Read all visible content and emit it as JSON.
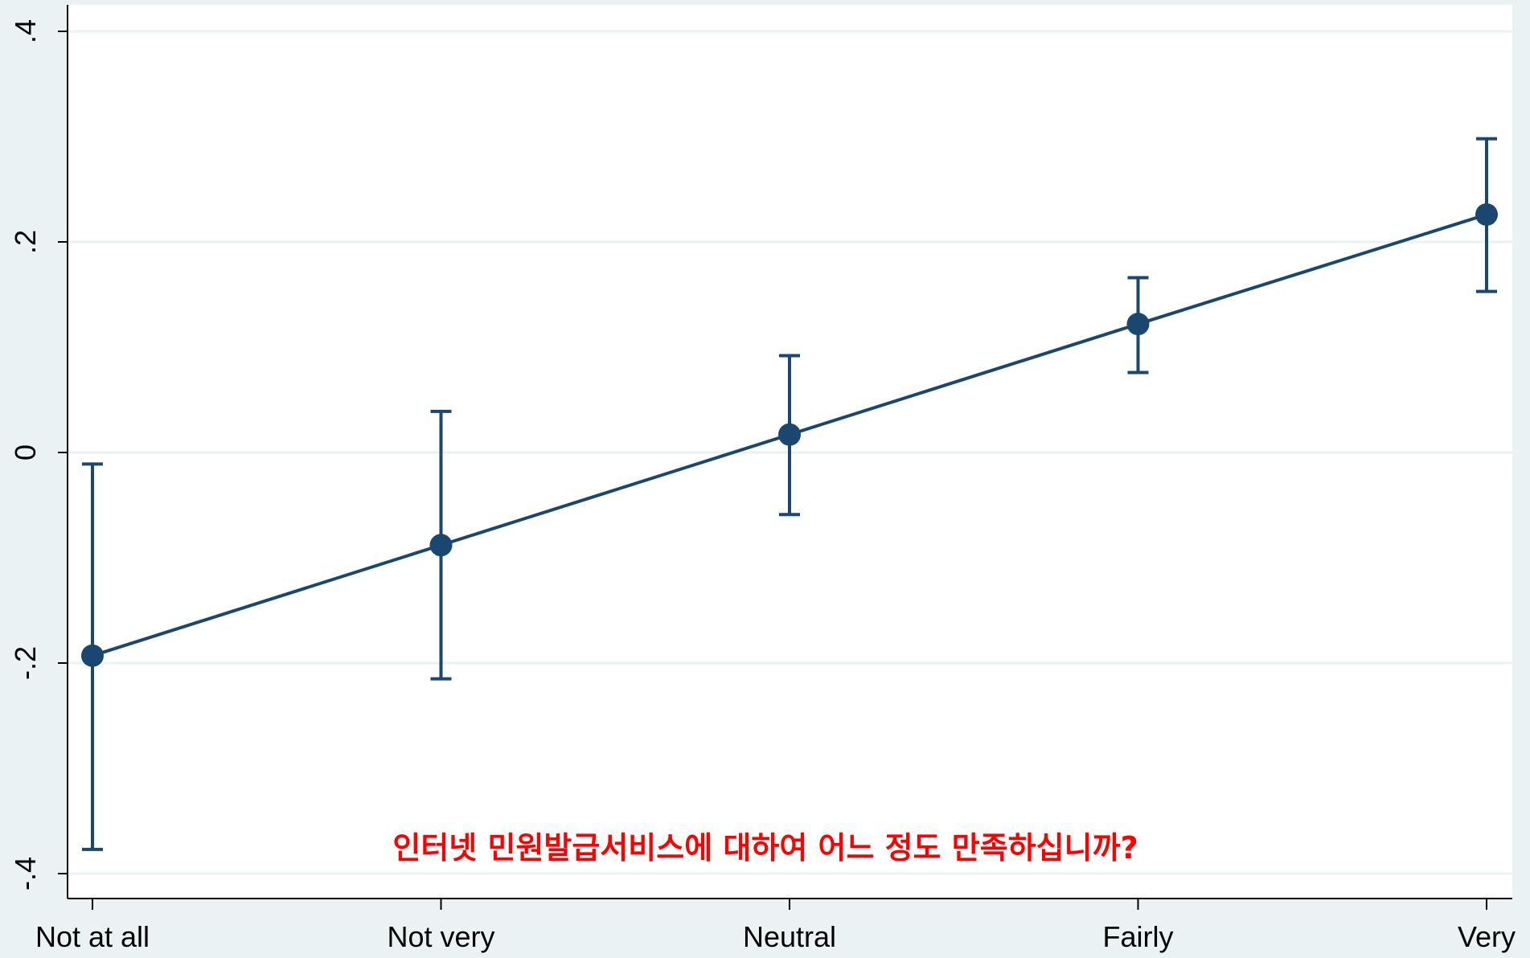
{
  "chart_data": {
    "type": "line",
    "categories": [
      "Not at all",
      "Not very",
      "Neutral",
      "Fairly",
      "Very"
    ],
    "series": [
      {
        "values": [
          -0.193,
          -0.088,
          0.017,
          0.122,
          0.226
        ],
        "ci_lower": [
          -0.377,
          -0.215,
          -0.059,
          0.076,
          0.153
        ],
        "ci_upper": [
          -0.011,
          0.039,
          0.092,
          0.166,
          0.298
        ]
      }
    ],
    "y_ticks": [
      -0.4,
      -0.2,
      0,
      0.2,
      0.4
    ],
    "y_tick_labels": [
      "-.4",
      "-.2",
      "0",
      ".2",
      ".4"
    ],
    "ylim": [
      -0.42,
      0.425
    ],
    "grid": true,
    "annotation": "인터넷 민원발급서비스에 대하여 어느 정도 만족하십니까?",
    "colors": {
      "background": "#eaf2f3",
      "plot_area": "#ffffff",
      "line": "#1a476f",
      "grid": "#eaf2f3",
      "annotation": "#ff0000"
    }
  }
}
